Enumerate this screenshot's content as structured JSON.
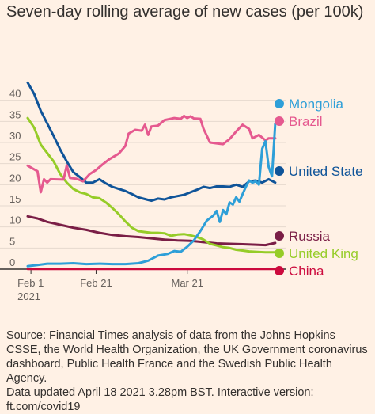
{
  "chart_data": {
    "type": "line",
    "title": "Seven-day rolling average of new cases (per 100k)",
    "x_ticks": [
      "Feb 1\n2021",
      "Feb 21",
      "Mar 21"
    ],
    "x_tick_days": [
      1,
      21,
      49
    ],
    "x_range": [
      0,
      77
    ],
    "ylim": [
      0,
      45
    ],
    "y_ticks": [
      0,
      5,
      10,
      15,
      20,
      25,
      30,
      35,
      40
    ],
    "grid": "horizontal",
    "legend": "end-of-line labels",
    "series": [
      {
        "name": "Mongolia",
        "color": "#2e9fd8",
        "values": [
          [
            0,
            0.7
          ],
          [
            3,
            1.0
          ],
          [
            6,
            1.3
          ],
          [
            10,
            1.3
          ],
          [
            14,
            1.4
          ],
          [
            18,
            1.2
          ],
          [
            22,
            1.3
          ],
          [
            26,
            1.2
          ],
          [
            30,
            1.2
          ],
          [
            34,
            1.4
          ],
          [
            37,
            2.0
          ],
          [
            40,
            3.2
          ],
          [
            43,
            3.6
          ],
          [
            45,
            4.3
          ],
          [
            47,
            4.1
          ],
          [
            49,
            5.3
          ],
          [
            51,
            6.8
          ],
          [
            53,
            9.0
          ],
          [
            55,
            11.5
          ],
          [
            57,
            12.7
          ],
          [
            58,
            13.8
          ],
          [
            59,
            11.2
          ],
          [
            60,
            14.0
          ],
          [
            61,
            13.0
          ],
          [
            62,
            15.8
          ],
          [
            63,
            15.3
          ],
          [
            64,
            17.0
          ],
          [
            65,
            16.0
          ],
          [
            66,
            17.8
          ],
          [
            67,
            19.5
          ],
          [
            68,
            21.0
          ],
          [
            69,
            20.5
          ],
          [
            70,
            20.8
          ],
          [
            71,
            20.0
          ],
          [
            72,
            28.5
          ],
          [
            73,
            30.3
          ],
          [
            74,
            24.2
          ],
          [
            75,
            22.0
          ],
          [
            76,
            34.5
          ]
        ]
      },
      {
        "name": "Brazil",
        "color": "#e5598f",
        "values": [
          [
            0,
            24.5
          ],
          [
            3,
            23.2
          ],
          [
            4,
            18.2
          ],
          [
            5,
            21.3
          ],
          [
            6,
            20.5
          ],
          [
            7,
            21.3
          ],
          [
            11,
            21.2
          ],
          [
            12,
            24.6
          ],
          [
            13,
            21.6
          ],
          [
            15,
            21.4
          ],
          [
            17,
            20.8
          ],
          [
            19,
            22.5
          ],
          [
            21,
            23.5
          ],
          [
            23,
            24.8
          ],
          [
            25,
            26.0
          ],
          [
            28,
            27.4
          ],
          [
            30,
            29.2
          ],
          [
            31,
            32.1
          ],
          [
            33,
            33.0
          ],
          [
            35,
            32.8
          ],
          [
            36,
            34.2
          ],
          [
            37,
            31.8
          ],
          [
            38,
            33.8
          ],
          [
            40,
            34.0
          ],
          [
            42,
            35.3
          ],
          [
            45,
            35.8
          ],
          [
            47,
            35.6
          ],
          [
            48,
            36.3
          ],
          [
            49,
            35.8
          ],
          [
            50,
            36.2
          ],
          [
            51,
            35.7
          ],
          [
            53,
            35.6
          ],
          [
            54,
            33.2
          ],
          [
            56,
            30.0
          ],
          [
            58,
            29.8
          ],
          [
            60,
            29.6
          ],
          [
            62,
            30.8
          ],
          [
            64,
            32.6
          ],
          [
            66,
            34.2
          ],
          [
            68,
            33.2
          ],
          [
            69,
            31.0
          ],
          [
            71,
            31.8
          ],
          [
            73,
            30.5
          ],
          [
            74,
            31.0
          ],
          [
            76,
            31.0
          ]
        ]
      },
      {
        "name": "United States",
        "color": "#0f5499",
        "values": [
          [
            0,
            44.2
          ],
          [
            2,
            41.5
          ],
          [
            4,
            37.5
          ],
          [
            6,
            34.5
          ],
          [
            8,
            31.5
          ],
          [
            10,
            28.3
          ],
          [
            12,
            25.5
          ],
          [
            14,
            23.0
          ],
          [
            16,
            21.8
          ],
          [
            18,
            20.5
          ],
          [
            20,
            20.5
          ],
          [
            22,
            21.3
          ],
          [
            24,
            20.3
          ],
          [
            26,
            19.5
          ],
          [
            28,
            19.0
          ],
          [
            30,
            18.5
          ],
          [
            32,
            17.8
          ],
          [
            34,
            17.0
          ],
          [
            36,
            16.6
          ],
          [
            38,
            16.2
          ],
          [
            40,
            16.7
          ],
          [
            42,
            16.5
          ],
          [
            44,
            17.0
          ],
          [
            46,
            17.3
          ],
          [
            48,
            17.6
          ],
          [
            50,
            18.2
          ],
          [
            52,
            18.8
          ],
          [
            54,
            19.5
          ],
          [
            56,
            19.2
          ],
          [
            58,
            19.6
          ],
          [
            60,
            19.6
          ],
          [
            62,
            19.5
          ],
          [
            64,
            20.0
          ],
          [
            66,
            19.5
          ],
          [
            68,
            20.8
          ],
          [
            70,
            21.0
          ],
          [
            72,
            20.5
          ],
          [
            74,
            21.3
          ],
          [
            76,
            20.5
          ]
        ]
      },
      {
        "name": "Russia",
        "color": "#7a1e46",
        "values": [
          [
            0,
            12.5
          ],
          [
            3,
            12.0
          ],
          [
            6,
            11.2
          ],
          [
            10,
            10.5
          ],
          [
            14,
            9.8
          ],
          [
            18,
            9.3
          ],
          [
            22,
            8.6
          ],
          [
            26,
            8.1
          ],
          [
            30,
            7.8
          ],
          [
            34,
            7.6
          ],
          [
            38,
            7.3
          ],
          [
            42,
            7.0
          ],
          [
            46,
            6.8
          ],
          [
            50,
            6.7
          ],
          [
            54,
            6.4
          ],
          [
            58,
            6.1
          ],
          [
            62,
            6.0
          ],
          [
            66,
            5.9
          ],
          [
            70,
            5.8
          ],
          [
            73,
            5.7
          ],
          [
            76,
            6.2
          ]
        ]
      },
      {
        "name": "United Kingdom",
        "color": "#96cc28",
        "values": [
          [
            0,
            35.8
          ],
          [
            2,
            33.5
          ],
          [
            4,
            29.5
          ],
          [
            6,
            27.5
          ],
          [
            8,
            25.5
          ],
          [
            10,
            22.5
          ],
          [
            12,
            20.5
          ],
          [
            14,
            19.0
          ],
          [
            16,
            18.2
          ],
          [
            18,
            17.8
          ],
          [
            20,
            17.0
          ],
          [
            22,
            16.8
          ],
          [
            24,
            15.8
          ],
          [
            26,
            14.5
          ],
          [
            28,
            13.0
          ],
          [
            30,
            11.3
          ],
          [
            32,
            9.8
          ],
          [
            34,
            9.0
          ],
          [
            36,
            8.8
          ],
          [
            38,
            8.6
          ],
          [
            40,
            8.6
          ],
          [
            42,
            8.5
          ],
          [
            44,
            7.9
          ],
          [
            46,
            8.2
          ],
          [
            48,
            8.3
          ],
          [
            50,
            8.0
          ],
          [
            52,
            7.6
          ],
          [
            54,
            7.0
          ],
          [
            56,
            6.0
          ],
          [
            58,
            5.6
          ],
          [
            60,
            5.2
          ],
          [
            62,
            5.0
          ],
          [
            64,
            4.6
          ],
          [
            66,
            4.4
          ],
          [
            68,
            4.2
          ],
          [
            70,
            4.1
          ],
          [
            73,
            4.0
          ],
          [
            76,
            4.0
          ]
        ]
      },
      {
        "name": "China",
        "color": "#cc0a3d",
        "values": [
          [
            0,
            0.05
          ],
          [
            76,
            0.05
          ]
        ]
      }
    ],
    "end_labels": [
      "Mongolia",
      "Brazil",
      "United State",
      "Russia",
      "United King",
      "China"
    ]
  },
  "source": {
    "text": "Source: Financial Times analysis of data from the Johns Hopkins CSSE, the World Health Organization, the UK Government coronavirus dashboard, Public Health France and the Swedish Public Health Agency.",
    "updated": "Data updated April 18 2021 3.28pm BST. Interactive version: ft.com/covid19"
  }
}
